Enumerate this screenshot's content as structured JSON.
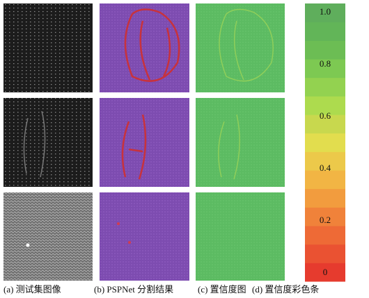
{
  "captions": [
    "(a) 测试集图像",
    "(b) PSPNet 分割结果",
    "(c) 置信度图",
    "(d) 置信度彩色条"
  ],
  "colorbar": {
    "ticks": [
      0,
      0.2,
      0.4,
      0.6,
      0.8,
      {
        "value": 1,
        "label": "1.0"
      }
    ]
  }
}
